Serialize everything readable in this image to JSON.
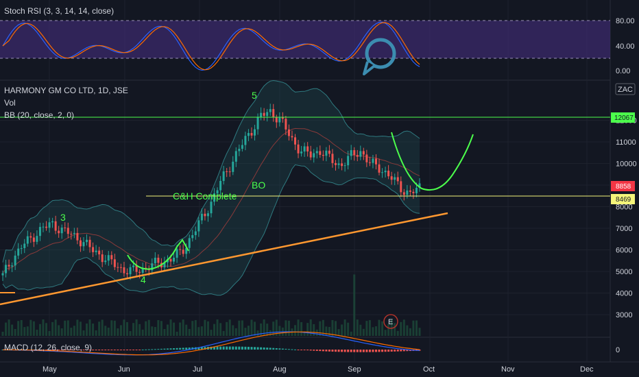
{
  "chart_data": {
    "type": "candlestick",
    "symbol": "HARMONY GM CO LTD, 1D, JSE",
    "currency": "ZAC",
    "indicators": {
      "stoch_rsi": {
        "label": "Stoch RSI (3, 3, 14, 14, close)",
        "ticks": [
          "80.00",
          "40.00",
          "0.00"
        ],
        "upper": 80,
        "lower": 20
      },
      "vol": {
        "label": "Vol"
      },
      "bb": {
        "label": "BB (20, close, 2, 0)"
      },
      "macd": {
        "label": "MACD (12, 26, close, 9)",
        "ticks": [
          "0"
        ]
      }
    },
    "price_ticks": [
      "12000",
      "11000",
      "10000",
      "9000",
      "8000",
      "7000",
      "6000",
      "5000",
      "4000",
      "3000"
    ],
    "x_labels": [
      "May",
      "Jun",
      "Jul",
      "Aug",
      "Sep",
      "Oct",
      "Nov",
      "Dec"
    ],
    "ylim": [
      2600,
      13200
    ],
    "price_tags": [
      {
        "value": "12067",
        "color": "#4cff4c"
      },
      {
        "value": "8858",
        "color": "#f23645"
      },
      {
        "value": "8469",
        "color": "#f5f57a"
      }
    ],
    "annotations": {
      "wave_3": "3",
      "wave_4": "4",
      "wave_5": "5",
      "ch_complete": "C&H Complete",
      "breakout": "BO",
      "earnings": "E"
    },
    "horizontal_lines": [
      {
        "value": 12067,
        "color": "#4cff4c"
      },
      {
        "value": 8469,
        "color": "#f5f57a"
      }
    ],
    "trendline": {
      "color": "#ff9830",
      "from": [
        3580,
        "Apr"
      ],
      "to": [
        7790,
        "Oct"
      ]
    },
    "closes_approx": [
      4800,
      5600,
      6200,
      6600,
      7000,
      7200,
      6900,
      6700,
      6400,
      6000,
      5700,
      5400,
      5100,
      5000,
      5100,
      5300,
      5400,
      5600,
      5900,
      6600,
      7400,
      8200,
      9200,
      10000,
      10800,
      11500,
      12200,
      12400,
      12000,
      11200,
      10600,
      10400,
      10600,
      10200,
      9900,
      10300,
      10600,
      10000,
      9800,
      9400,
      8900,
      8600,
      8858
    ]
  }
}
